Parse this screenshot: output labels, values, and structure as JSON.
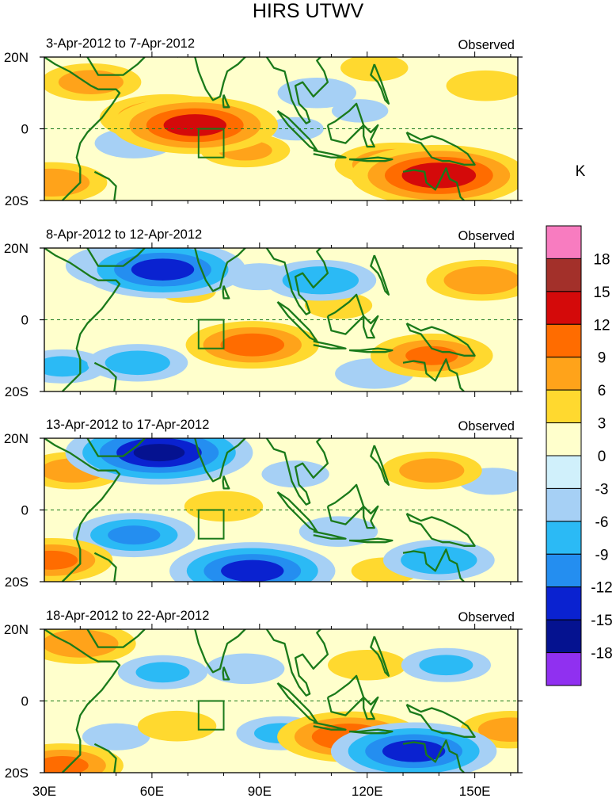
{
  "chart_data": {
    "type": "heatmap",
    "title": "HIRS UTWV",
    "units_label": "K",
    "lon_range": [
      30,
      162
    ],
    "lat_range": [
      -20,
      20
    ],
    "xtick_values": [
      30,
      60,
      90,
      120,
      150
    ],
    "xtick_labels": [
      "30E",
      "60E",
      "90E",
      "120E",
      "150E"
    ],
    "ytick_values": [
      20,
      0,
      -20
    ],
    "ytick_labels": [
      "20N",
      "0",
      "20S"
    ],
    "colorbar": {
      "boundaries": [
        18,
        15,
        12,
        9,
        6,
        3,
        0,
        -3,
        -6,
        -9,
        -12,
        -15,
        -18
      ],
      "labels": [
        "18",
        "15",
        "12",
        "9",
        "6",
        "3",
        "0",
        "-3",
        "-6",
        "-9",
        "-12",
        "-15",
        "-18"
      ],
      "colors_top_to_bottom": [
        "#f87cc0",
        "#a3302a",
        "#d40a0a",
        "#ff6c00",
        "#ffa31a",
        "#ffd92f",
        "#ffffcc",
        "#d0f0fb",
        "#a6d0f5",
        "#2bbaf5",
        "#248ef0",
        "#0a22d0",
        "#051290",
        "#9030f0"
      ]
    },
    "box_region": {
      "lon": [
        73,
        80
      ],
      "lat": [
        -8,
        0
      ]
    },
    "panels": [
      {
        "period": "3-Apr-2012 to 7-Apr-2012",
        "label": "Observed",
        "anomaly_centers": [
          {
            "lon": 72,
            "lat": 1,
            "value": 13
          },
          {
            "lon": 64,
            "lat": 3,
            "value": 10
          },
          {
            "lon": 86,
            "lat": -6,
            "value": 6
          },
          {
            "lon": 140,
            "lat": -13,
            "value": 14
          },
          {
            "lon": 128,
            "lat": -10,
            "value": 9
          },
          {
            "lon": 43,
            "lat": 13,
            "value": 7
          },
          {
            "lon": 32,
            "lat": -15,
            "value": 8
          },
          {
            "lon": 153,
            "lat": 12,
            "value": 5
          },
          {
            "lon": 122,
            "lat": 17,
            "value": 4
          },
          {
            "lon": 55,
            "lat": -4,
            "value": -5
          },
          {
            "lon": 106,
            "lat": 10,
            "value": -5
          },
          {
            "lon": 118,
            "lat": 5,
            "value": -3
          },
          {
            "lon": 100,
            "lat": 0,
            "value": -3
          }
        ]
      },
      {
        "period": "8-Apr-2012 to 12-Apr-2012",
        "label": "Observed",
        "anomaly_centers": [
          {
            "lon": 63,
            "lat": 14,
            "value": -13
          },
          {
            "lon": 53,
            "lat": 15,
            "value": -9
          },
          {
            "lon": 88,
            "lat": -7,
            "value": 10
          },
          {
            "lon": 138,
            "lat": -10,
            "value": 9
          },
          {
            "lon": 152,
            "lat": 11,
            "value": 8
          },
          {
            "lon": 107,
            "lat": 11,
            "value": -8
          },
          {
            "lon": 56,
            "lat": -12,
            "value": -7
          },
          {
            "lon": 122,
            "lat": -15,
            "value": -5
          },
          {
            "lon": 35,
            "lat": -13,
            "value": -6
          },
          {
            "lon": 112,
            "lat": 4,
            "value": 4
          },
          {
            "lon": 90,
            "lat": 12,
            "value": -4
          },
          {
            "lon": 70,
            "lat": 8,
            "value": 3
          }
        ]
      },
      {
        "period": "13-Apr-2012 to 17-Apr-2012",
        "label": "Observed",
        "anomaly_centers": [
          {
            "lon": 62,
            "lat": 16,
            "value": -15
          },
          {
            "lon": 88,
            "lat": -17,
            "value": -13
          },
          {
            "lon": 55,
            "lat": -7,
            "value": -9
          },
          {
            "lon": 38,
            "lat": 11,
            "value": 7
          },
          {
            "lon": 138,
            "lat": 11,
            "value": 7
          },
          {
            "lon": 32,
            "lat": -14,
            "value": 9
          },
          {
            "lon": 80,
            "lat": 1,
            "value": 5
          },
          {
            "lon": 140,
            "lat": -14,
            "value": -8
          },
          {
            "lon": 112,
            "lat": -6,
            "value": -5
          },
          {
            "lon": 100,
            "lat": 10,
            "value": -4
          },
          {
            "lon": 155,
            "lat": 8,
            "value": -4
          },
          {
            "lon": 125,
            "lat": -17,
            "value": 4
          }
        ]
      },
      {
        "period": "18-Apr-2012 to 22-Apr-2012",
        "label": "Observed",
        "anomaly_centers": [
          {
            "lon": 115,
            "lat": -10,
            "value": 11
          },
          {
            "lon": 133,
            "lat": -14,
            "value": -13
          },
          {
            "lon": 40,
            "lat": 16,
            "value": 8
          },
          {
            "lon": 35,
            "lat": -18,
            "value": 9
          },
          {
            "lon": 160,
            "lat": -8,
            "value": 7
          },
          {
            "lon": 63,
            "lat": 8,
            "value": -6
          },
          {
            "lon": 86,
            "lat": 9,
            "value": -5
          },
          {
            "lon": 142,
            "lat": 10,
            "value": -6
          },
          {
            "lon": 96,
            "lat": -9,
            "value": -6
          },
          {
            "lon": 120,
            "lat": 10,
            "value": 5
          },
          {
            "lon": 67,
            "lat": -7,
            "value": 5
          },
          {
            "lon": 50,
            "lat": -10,
            "value": -4
          }
        ]
      }
    ]
  }
}
